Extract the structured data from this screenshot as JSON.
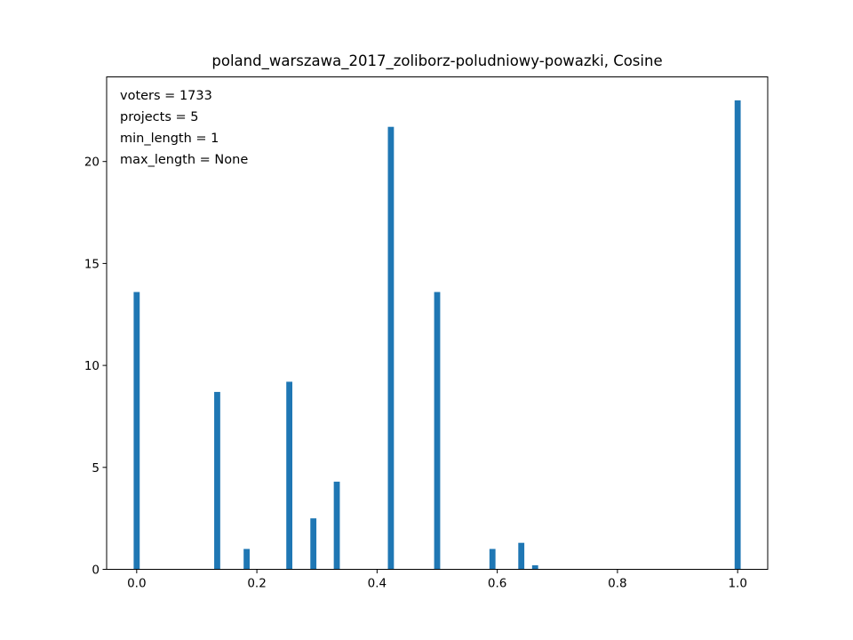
{
  "chart_data": {
    "type": "bar",
    "title": "poland_warszawa_2017_zoliborz-poludniowy-powazki, Cosine",
    "xlabel": "",
    "ylabel": "",
    "xlim": [
      -0.05,
      1.05
    ],
    "ylim": [
      0,
      24.15
    ],
    "x_ticks": [
      0.0,
      0.2,
      0.4,
      0.6,
      0.8,
      1.0
    ],
    "x_tick_labels": [
      "0.0",
      "0.2",
      "0.4",
      "0.6",
      "0.8",
      "1.0"
    ],
    "y_ticks": [
      0,
      5,
      10,
      15,
      20
    ],
    "y_tick_labels": [
      "0",
      "5",
      "10",
      "15",
      "20"
    ],
    "grid": false,
    "bar_color": "#1f77b4",
    "bars": [
      {
        "x": 0.0,
        "value": 13.6
      },
      {
        "x": 0.134,
        "value": 8.7
      },
      {
        "x": 0.183,
        "value": 1.0
      },
      {
        "x": 0.254,
        "value": 9.2
      },
      {
        "x": 0.294,
        "value": 2.5
      },
      {
        "x": 0.333,
        "value": 4.3
      },
      {
        "x": 0.423,
        "value": 21.7
      },
      {
        "x": 0.5,
        "value": 13.6
      },
      {
        "x": 0.592,
        "value": 1.0
      },
      {
        "x": 0.64,
        "value": 1.3
      },
      {
        "x": 0.663,
        "value": 0.2
      },
      {
        "x": 1.0,
        "value": 23.0
      }
    ],
    "annotations": [
      "voters = 1733",
      "projects = 5",
      "min_length = 1",
      "max_length = None"
    ]
  }
}
